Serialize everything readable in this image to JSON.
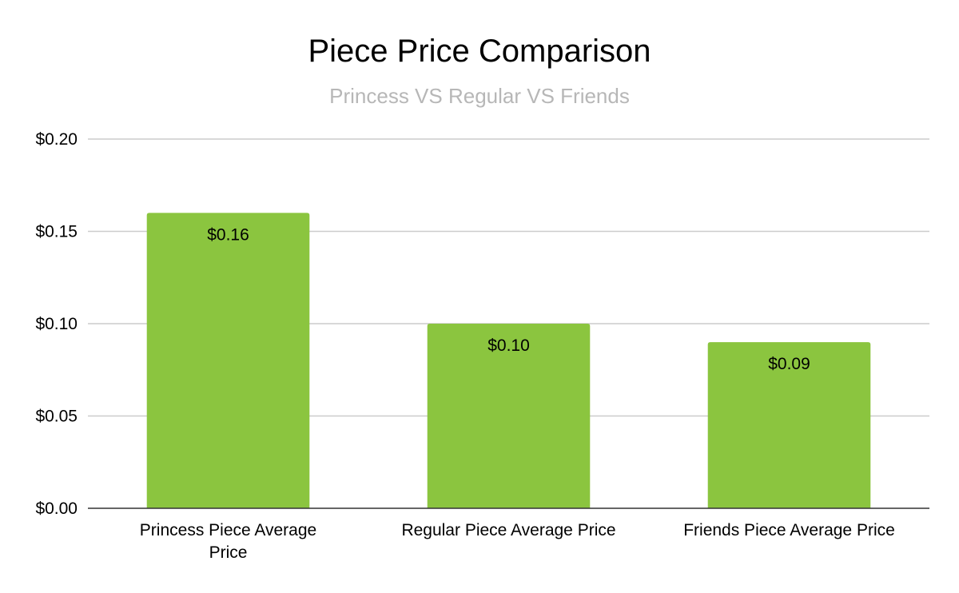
{
  "chart_data": {
    "type": "bar",
    "title": "Piece Price Comparison",
    "subtitle": "Princess VS Regular VS Friends",
    "categories": [
      [
        "Princess Piece Average",
        "Price"
      ],
      [
        "Regular Piece Average Price"
      ],
      [
        "Friends Piece Average Price"
      ]
    ],
    "values": [
      0.16,
      0.1,
      0.09
    ],
    "data_labels": [
      "$0.16",
      "$0.10",
      "$0.09"
    ],
    "yticks": [
      0,
      0.05,
      0.1,
      0.15,
      0.2
    ],
    "ytick_labels": [
      "$0.00",
      "$0.05",
      "$0.10",
      "$0.15",
      "$0.20"
    ],
    "ylim": [
      0,
      0.2
    ],
    "xlabel": "",
    "ylabel": "",
    "grid": true,
    "legend": "none",
    "colors": {
      "bar": "#8bc53f",
      "grid": "#cccccc",
      "axis": "#333333",
      "subtitle": "#b7b7b7"
    }
  }
}
